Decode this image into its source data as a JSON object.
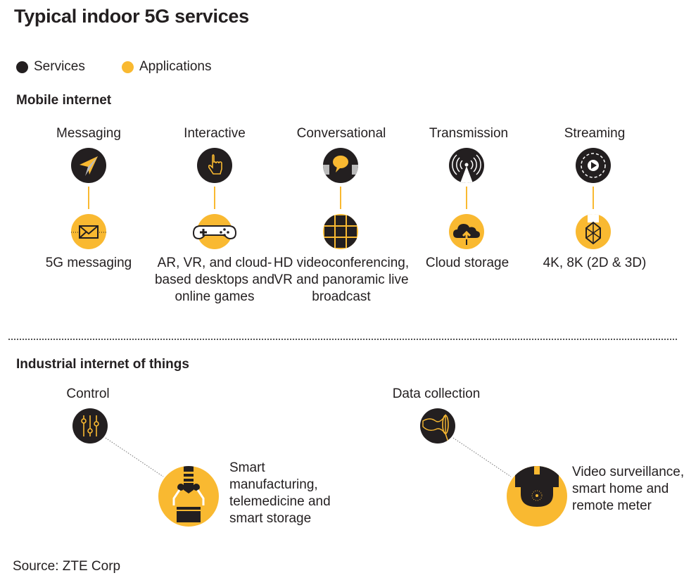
{
  "title": "Typical indoor 5G services",
  "legend": [
    {
      "label": "Services",
      "color": "#231f20"
    },
    {
      "label": "Applications",
      "color": "#f9b931"
    }
  ],
  "colors": {
    "service": "#231f20",
    "application": "#f9b931"
  },
  "mobile_internet": {
    "heading": "Mobile internet",
    "columns": [
      {
        "service": "Messaging",
        "service_icon": "paper-plane-icon",
        "application": "5G messaging",
        "application_icon": "envelope-icon"
      },
      {
        "service": "Interactive",
        "service_icon": "pointing-hand-icon",
        "application": "AR, VR, and cloud-based desktops and online games",
        "application_icon": "gamepad-icon"
      },
      {
        "service": "Conversational",
        "service_icon": "speech-bubble-icon",
        "application": "HD videoconferencing, VR and panoramic live broadcast",
        "application_icon": "video-grid-icon"
      },
      {
        "service": "Transmission",
        "service_icon": "broadcast-tower-icon",
        "application": "Cloud storage",
        "application_icon": "cloud-upload-icon"
      },
      {
        "service": "Streaming",
        "service_icon": "play-icon",
        "application": "4K, 8K (2D & 3D)",
        "application_icon": "cube-icon"
      }
    ]
  },
  "iiot": {
    "heading": "Industrial internet of things",
    "items": [
      {
        "service": "Control",
        "service_icon": "sliders-icon",
        "application": "Smart manufacturing, telemedicine and smart storage",
        "application_icon": "robot-arm-icon"
      },
      {
        "service": "Data collection",
        "service_icon": "net-icon",
        "application": "Video surveillance, smart home and remote meter",
        "application_icon": "security-camera-icon"
      }
    ]
  },
  "source": "Source: ZTE Corp"
}
